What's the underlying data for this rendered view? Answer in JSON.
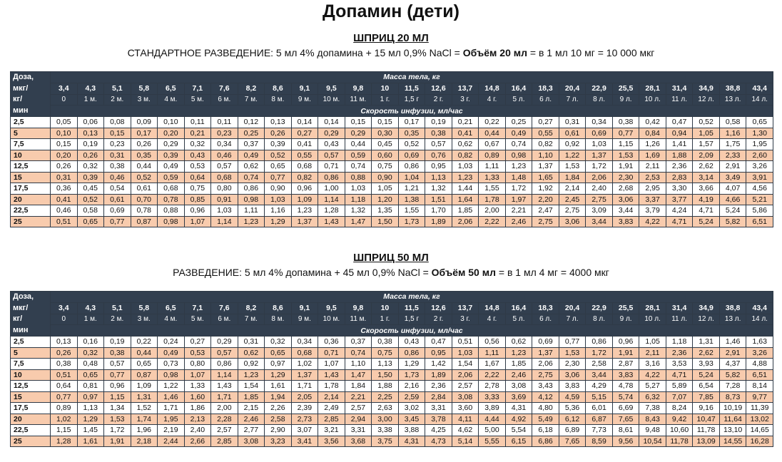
{
  "title": "Допамин (дети)",
  "sections": [
    {
      "heading": "ШПРИЦ 20 МЛ",
      "subtitle_pre": "СТАНДАРТНОЕ РАЗВЕДЕНИЕ: 5 мл 4% допамина + 15 мл 0,9% NaCl = ",
      "subtitle_bold": "Объём 20 мл",
      "subtitle_post": " = в 1 мл 10 мг = 10 000 мкг"
    },
    {
      "heading": "ШПРИЦ 50 МЛ",
      "subtitle_pre": "РАЗВЕДЕНИЕ: 5 мл 4% допамина + 45 мл 0,9% NaCl = ",
      "subtitle_bold": "Объём 50 мл",
      "subtitle_post": " = в 1 мл 4 мг = 4000 мкг"
    }
  ],
  "table_header": {
    "dose_label_lines": [
      "Доза,",
      "мкг/",
      "кг/",
      "мин"
    ],
    "mass_label": "Масса тела, кг",
    "speed_label": "Скорость инфузии, мл/час",
    "weights": [
      "3,4",
      "4,3",
      "5,1",
      "5,8",
      "6,5",
      "7,1",
      "7,6",
      "8,2",
      "8,6",
      "9,1",
      "9,5",
      "9,8",
      "10",
      "11,5",
      "12,6",
      "13,7",
      "14,8",
      "16,4",
      "18,3",
      "20,4",
      "22,9",
      "25,5",
      "28,1",
      "31,4",
      "34,9",
      "38,8",
      "43,4"
    ],
    "ages": [
      "0",
      "1 м.",
      "2 м.",
      "3 м.",
      "4 м.",
      "5 м.",
      "6 м.",
      "7 м.",
      "8 м.",
      "9 м.",
      "10 м.",
      "11 м.",
      "1 г.",
      "1,5 г",
      "2 г.",
      "3 г.",
      "4 г.",
      "5 л.",
      "6 л.",
      "7 л.",
      "8 л.",
      "9 л.",
      "10 л.",
      "11 л.",
      "12 л.",
      "13 л.",
      "14 л."
    ]
  },
  "doses": [
    "2,5",
    "5",
    "7,5",
    "10",
    "12,5",
    "15",
    "17,5",
    "20",
    "22,5",
    "25"
  ],
  "table1": [
    [
      "0,05",
      "0,06",
      "0,08",
      "0,09",
      "0,10",
      "0,11",
      "0,11",
      "0,12",
      "0,13",
      "0,14",
      "0,14",
      "0,15",
      "0,15",
      "0,17",
      "0,19",
      "0,21",
      "0,22",
      "0,25",
      "0,27",
      "0,31",
      "0,34",
      "0,38",
      "0,42",
      "0,47",
      "0,52",
      "0,58",
      "0,65"
    ],
    [
      "0,10",
      "0,13",
      "0,15",
      "0,17",
      "0,20",
      "0,21",
      "0,23",
      "0,25",
      "0,26",
      "0,27",
      "0,29",
      "0,29",
      "0,30",
      "0,35",
      "0,38",
      "0,41",
      "0,44",
      "0,49",
      "0,55",
      "0,61",
      "0,69",
      "0,77",
      "0,84",
      "0,94",
      "1,05",
      "1,16",
      "1,30"
    ],
    [
      "0,15",
      "0,19",
      "0,23",
      "0,26",
      "0,29",
      "0,32",
      "0,34",
      "0,37",
      "0,39",
      "0,41",
      "0,43",
      "0,44",
      "0,45",
      "0,52",
      "0,57",
      "0,62",
      "0,67",
      "0,74",
      "0,82",
      "0,92",
      "1,03",
      "1,15",
      "1,26",
      "1,41",
      "1,57",
      "1,75",
      "1,95"
    ],
    [
      "0,20",
      "0,26",
      "0,31",
      "0,35",
      "0,39",
      "0,43",
      "0,46",
      "0,49",
      "0,52",
      "0,55",
      "0,57",
      "0,59",
      "0,60",
      "0,69",
      "0,76",
      "0,82",
      "0,89",
      "0,98",
      "1,10",
      "1,22",
      "1,37",
      "1,53",
      "1,69",
      "1,88",
      "2,09",
      "2,33",
      "2,60"
    ],
    [
      "0,26",
      "0,32",
      "0,38",
      "0,44",
      "0,49",
      "0,53",
      "0,57",
      "0,62",
      "0,65",
      "0,68",
      "0,71",
      "0,74",
      "0,75",
      "0,86",
      "0,95",
      "1,03",
      "1,11",
      "1,23",
      "1,37",
      "1,53",
      "1,72",
      "1,91",
      "2,11",
      "2,36",
      "2,62",
      "2,91",
      "3,26"
    ],
    [
      "0,31",
      "0,39",
      "0,46",
      "0,52",
      "0,59",
      "0,64",
      "0,68",
      "0,74",
      "0,77",
      "0,82",
      "0,86",
      "0,88",
      "0,90",
      "1,04",
      "1,13",
      "1,23",
      "1,33",
      "1,48",
      "1,65",
      "1,84",
      "2,06",
      "2,30",
      "2,53",
      "2,83",
      "3,14",
      "3,49",
      "3,91"
    ],
    [
      "0,36",
      "0,45",
      "0,54",
      "0,61",
      "0,68",
      "0,75",
      "0,80",
      "0,86",
      "0,90",
      "0,96",
      "1,00",
      "1,03",
      "1,05",
      "1,21",
      "1,32",
      "1,44",
      "1,55",
      "1,72",
      "1,92",
      "2,14",
      "2,40",
      "2,68",
      "2,95",
      "3,30",
      "3,66",
      "4,07",
      "4,56"
    ],
    [
      "0,41",
      "0,52",
      "0,61",
      "0,70",
      "0,78",
      "0,85",
      "0,91",
      "0,98",
      "1,03",
      "1,09",
      "1,14",
      "1,18",
      "1,20",
      "1,38",
      "1,51",
      "1,64",
      "1,78",
      "1,97",
      "2,20",
      "2,45",
      "2,75",
      "3,06",
      "3,37",
      "3,77",
      "4,19",
      "4,66",
      "5,21"
    ],
    [
      "0,46",
      "0,58",
      "0,69",
      "0,78",
      "0,88",
      "0,96",
      "1,03",
      "1,11",
      "1,16",
      "1,23",
      "1,28",
      "1,32",
      "1,35",
      "1,55",
      "1,70",
      "1,85",
      "2,00",
      "2,21",
      "2,47",
      "2,75",
      "3,09",
      "3,44",
      "3,79",
      "4,24",
      "4,71",
      "5,24",
      "5,86"
    ],
    [
      "0,51",
      "0,65",
      "0,77",
      "0,87",
      "0,98",
      "1,07",
      "1,14",
      "1,23",
      "1,29",
      "1,37",
      "1,43",
      "1,47",
      "1,50",
      "1,73",
      "1,89",
      "2,06",
      "2,22",
      "2,46",
      "2,75",
      "3,06",
      "3,44",
      "3,83",
      "4,22",
      "4,71",
      "5,24",
      "5,82",
      "6,51"
    ]
  ],
  "table2": [
    [
      "0,13",
      "0,16",
      "0,19",
      "0,22",
      "0,24",
      "0,27",
      "0,29",
      "0,31",
      "0,32",
      "0,34",
      "0,36",
      "0,37",
      "0,38",
      "0,43",
      "0,47",
      "0,51",
      "0,56",
      "0,62",
      "0,69",
      "0,77",
      "0,86",
      "0,96",
      "1,05",
      "1,18",
      "1,31",
      "1,46",
      "1,63"
    ],
    [
      "0,26",
      "0,32",
      "0,38",
      "0,44",
      "0,49",
      "0,53",
      "0,57",
      "0,62",
      "0,65",
      "0,68",
      "0,71",
      "0,74",
      "0,75",
      "0,86",
      "0,95",
      "1,03",
      "1,11",
      "1,23",
      "1,37",
      "1,53",
      "1,72",
      "1,91",
      "2,11",
      "2,36",
      "2,62",
      "2,91",
      "3,26"
    ],
    [
      "0,38",
      "0,48",
      "0,57",
      "0,65",
      "0,73",
      "0,80",
      "0,86",
      "0,92",
      "0,97",
      "1,02",
      "1,07",
      "1,10",
      "1,13",
      "1,29",
      "1,42",
      "1,54",
      "1,67",
      "1,85",
      "2,06",
      "2,30",
      "2,58",
      "2,87",
      "3,16",
      "3,53",
      "3,93",
      "4,37",
      "4,88"
    ],
    [
      "0,51",
      "0,65",
      "0,77",
      "0,87",
      "0,98",
      "1,07",
      "1,14",
      "1,23",
      "1,29",
      "1,37",
      "1,43",
      "1,47",
      "1,50",
      "1,73",
      "1,89",
      "2,06",
      "2,22",
      "2,46",
      "2,75",
      "3,06",
      "3,44",
      "3,83",
      "4,22",
      "4,71",
      "5,24",
      "5,82",
      "6,51"
    ],
    [
      "0,64",
      "0,81",
      "0,96",
      "1,09",
      "1,22",
      "1,33",
      "1,43",
      "1,54",
      "1,61",
      "1,71",
      "1,78",
      "1,84",
      "1,88",
      "2,16",
      "2,36",
      "2,57",
      "2,78",
      "3,08",
      "3,43",
      "3,83",
      "4,29",
      "4,78",
      "5,27",
      "5,89",
      "6,54",
      "7,28",
      "8,14"
    ],
    [
      "0,77",
      "0,97",
      "1,15",
      "1,31",
      "1,46",
      "1,60",
      "1,71",
      "1,85",
      "1,94",
      "2,05",
      "2,14",
      "2,21",
      "2,25",
      "2,59",
      "2,84",
      "3,08",
      "3,33",
      "3,69",
      "4,12",
      "4,59",
      "5,15",
      "5,74",
      "6,32",
      "7,07",
      "7,85",
      "8,73",
      "9,77"
    ],
    [
      "0,89",
      "1,13",
      "1,34",
      "1,52",
      "1,71",
      "1,86",
      "2,00",
      "2,15",
      "2,26",
      "2,39",
      "2,49",
      "2,57",
      "2,63",
      "3,02",
      "3,31",
      "3,60",
      "3,89",
      "4,31",
      "4,80",
      "5,36",
      "6,01",
      "6,69",
      "7,38",
      "8,24",
      "9,16",
      "10,19",
      "11,39"
    ],
    [
      "1,02",
      "1,29",
      "1,53",
      "1,74",
      "1,95",
      "2,13",
      "2,28",
      "2,46",
      "2,58",
      "2,73",
      "2,85",
      "2,94",
      "3,00",
      "3,45",
      "3,78",
      "4,11",
      "4,44",
      "4,92",
      "5,49",
      "6,12",
      "6,87",
      "7,65",
      "8,43",
      "9,42",
      "10,47",
      "11,64",
      "13,02"
    ],
    [
      "1,15",
      "1,45",
      "1,72",
      "1,96",
      "2,19",
      "2,40",
      "2,57",
      "2,77",
      "2,90",
      "3,07",
      "3,21",
      "3,31",
      "3,38",
      "3,88",
      "4,25",
      "4,62",
      "5,00",
      "5,54",
      "6,18",
      "6,89",
      "7,73",
      "8,61",
      "9,48",
      "10,60",
      "11,78",
      "13,10",
      "14,65"
    ],
    [
      "1,28",
      "1,61",
      "1,91",
      "2,18",
      "2,44",
      "2,66",
      "2,85",
      "3,08",
      "3,23",
      "3,41",
      "3,56",
      "3,68",
      "3,75",
      "4,31",
      "4,73",
      "5,14",
      "5,55",
      "6,15",
      "6,86",
      "7,65",
      "8,59",
      "9,56",
      "10,54",
      "11,78",
      "13,09",
      "14,55",
      "16,28"
    ]
  ]
}
